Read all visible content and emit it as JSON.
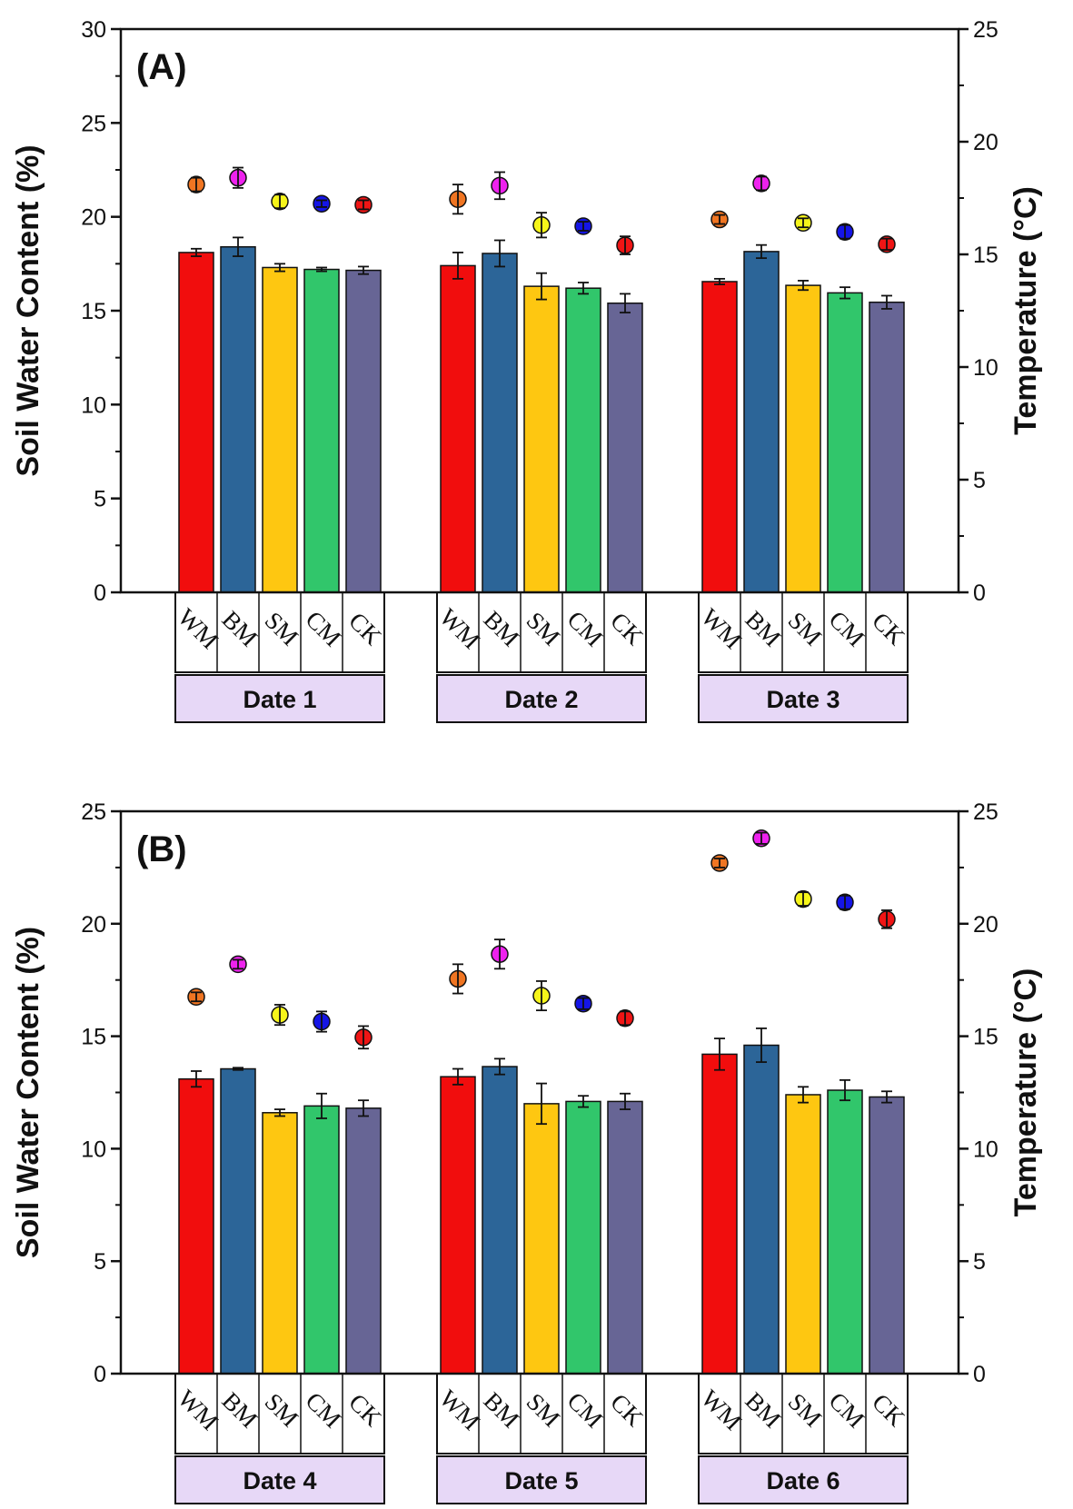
{
  "colors": {
    "bars": [
      "#f10d0d",
      "#2c6598",
      "#fec711",
      "#31c66b",
      "#676595"
    ],
    "dots": [
      "#f07522",
      "#ee22ee",
      "#f6f51a",
      "#1515e6",
      "#ef1515"
    ],
    "group_box": "#e7d8f7"
  },
  "chart_data": [
    {
      "type": "bar",
      "panel_label": "(A)",
      "ylabel": "Soil Water Content (%)",
      "y2label": "Temperature (°C)",
      "ylim": [
        0,
        30
      ],
      "y_ticks": [
        "0",
        "5",
        "10",
        "15",
        "20",
        "25",
        "30"
      ],
      "y2lim": [
        0,
        25
      ],
      "y2_ticks": [
        "0",
        "5",
        "10",
        "15",
        "20",
        "25"
      ],
      "categories": [
        "WM",
        "BM",
        "SM",
        "CM",
        "CK"
      ],
      "groups": [
        {
          "name": "Date 1",
          "swc": [
            18.1,
            18.4,
            17.3,
            17.2,
            17.15
          ],
          "swc_err": [
            0.2,
            0.5,
            0.2,
            0.1,
            0.2
          ],
          "temp": [
            18.1,
            18.4,
            17.35,
            17.25,
            17.2
          ],
          "temp_err": [
            0.3,
            0.45,
            0.3,
            0.15,
            0.2
          ]
        },
        {
          "name": "Date 2",
          "swc": [
            17.4,
            18.05,
            16.3,
            16.2,
            15.4
          ],
          "swc_err": [
            0.7,
            0.7,
            0.7,
            0.3,
            0.5
          ],
          "temp": [
            17.45,
            18.05,
            16.3,
            16.25,
            15.4
          ],
          "temp_err": [
            0.65,
            0.6,
            0.55,
            0.2,
            0.4
          ]
        },
        {
          "name": "Date 3",
          "swc": [
            16.55,
            18.15,
            16.35,
            15.95,
            15.45
          ],
          "swc_err": [
            0.15,
            0.35,
            0.25,
            0.3,
            0.35
          ],
          "temp": [
            16.55,
            18.15,
            16.4,
            16.0,
            15.45
          ],
          "temp_err": [
            0.2,
            0.3,
            0.2,
            0.3,
            0.25
          ]
        }
      ]
    },
    {
      "type": "bar",
      "panel_label": "(B)",
      "ylabel": "Soil Water Content (%)",
      "y2label": "Temperature (°C)",
      "ylim": [
        0,
        25
      ],
      "y_ticks": [
        "0",
        "5",
        "10",
        "15",
        "20",
        "25"
      ],
      "y2lim": [
        0,
        25
      ],
      "y2_ticks": [
        "0",
        "5",
        "10",
        "15",
        "20",
        "25"
      ],
      "categories": [
        "WM",
        "BM",
        "SM",
        "CM",
        "CK"
      ],
      "groups": [
        {
          "name": "Date 4",
          "swc": [
            13.1,
            13.55,
            11.6,
            11.9,
            11.8
          ],
          "swc_err": [
            0.35,
            0.05,
            0.15,
            0.55,
            0.35
          ],
          "temp": [
            16.75,
            18.2,
            15.95,
            15.65,
            14.95
          ],
          "temp_err": [
            0.2,
            0.2,
            0.45,
            0.45,
            0.5
          ]
        },
        {
          "name": "Date 5",
          "swc": [
            13.2,
            13.65,
            12.0,
            12.1,
            12.1
          ],
          "swc_err": [
            0.35,
            0.35,
            0.9,
            0.25,
            0.35
          ],
          "temp": [
            17.55,
            18.65,
            16.8,
            16.45,
            15.8
          ],
          "temp_err": [
            0.65,
            0.65,
            0.65,
            0.25,
            0.3
          ]
        },
        {
          "name": "Date 6",
          "swc": [
            14.2,
            14.6,
            12.4,
            12.6,
            12.3
          ],
          "swc_err": [
            0.7,
            0.75,
            0.35,
            0.45,
            0.25
          ],
          "temp": [
            22.7,
            23.8,
            21.1,
            20.95,
            20.2
          ],
          "temp_err": [
            0.2,
            0.25,
            0.3,
            0.3,
            0.4
          ]
        }
      ]
    }
  ]
}
